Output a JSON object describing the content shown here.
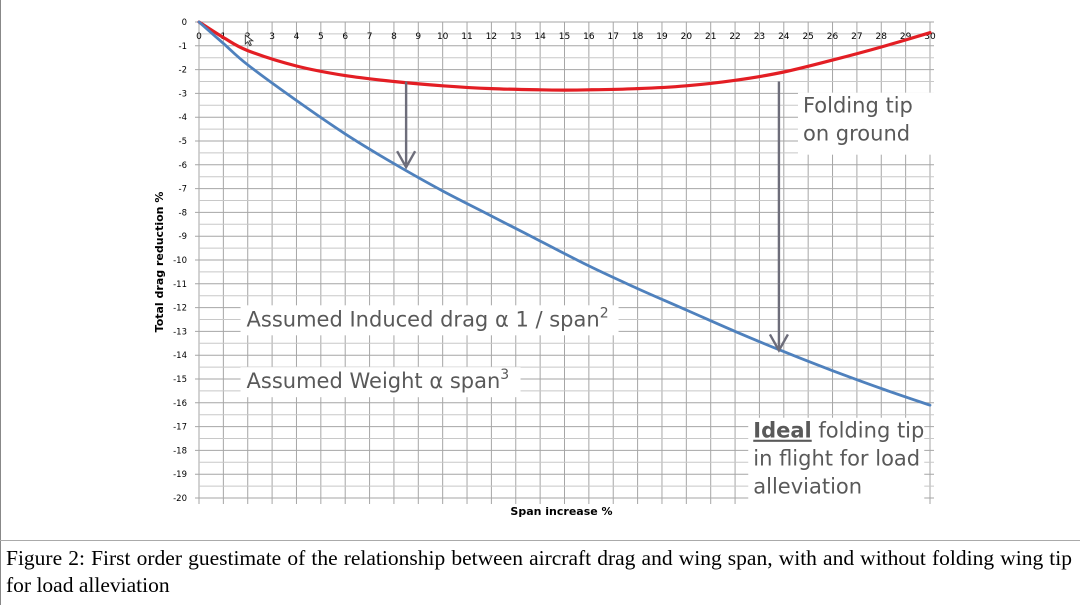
{
  "chart_data": {
    "type": "line",
    "title": "",
    "xlabel": "Span increase %",
    "ylabel": "Total drag reduction %",
    "xlim": [
      0,
      30
    ],
    "ylim": [
      -20,
      0
    ],
    "x_ticks": [
      "0",
      "1",
      "2",
      "3",
      "4",
      "5",
      "6",
      "7",
      "8",
      "9",
      "10",
      "11",
      "12",
      "13",
      "14",
      "15",
      "16",
      "17",
      "18",
      "19",
      "20",
      "21",
      "22",
      "23",
      "24",
      "25",
      "26",
      "27",
      "28",
      "29",
      "30"
    ],
    "y_ticks": [
      "0",
      "-1",
      "-2",
      "-3",
      "-4",
      "-5",
      "-6",
      "-7",
      "-8",
      "-9",
      "-10",
      "-11",
      "-12",
      "-13",
      "-14",
      "-15",
      "-16",
      "-17",
      "-18",
      "-19",
      "-20"
    ],
    "grid": true,
    "series": [
      {
        "name": "Folding tip on ground",
        "color": "#e31e24",
        "x": [
          0,
          1,
          2,
          4,
          6,
          8,
          10,
          12,
          14,
          15,
          16,
          18,
          20,
          22,
          24,
          26,
          28,
          30
        ],
        "values": [
          0,
          -0.65,
          -1.2,
          -1.85,
          -2.25,
          -2.5,
          -2.68,
          -2.8,
          -2.85,
          -2.86,
          -2.85,
          -2.8,
          -2.68,
          -2.45,
          -2.1,
          -1.6,
          -1.05,
          -0.45
        ]
      },
      {
        "name": "Ideal folding tip in flight for load alleviation",
        "color": "#4f81bd",
        "x": [
          0,
          1,
          2,
          4,
          6,
          8,
          10,
          12,
          14,
          16,
          18,
          20,
          22,
          24,
          26,
          28,
          30
        ],
        "values": [
          0,
          -0.9,
          -1.8,
          -3.3,
          -4.7,
          -5.95,
          -7.1,
          -8.15,
          -9.2,
          -10.25,
          -11.2,
          -12.1,
          -13.0,
          -13.85,
          -14.65,
          -15.4,
          -16.1
        ]
      }
    ],
    "annotations": [
      {
        "text_lines": [
          "Folding tip",
          "on ground"
        ],
        "x": 24.5,
        "y": -3.6
      },
      {
        "text": "Assumed Induced drag α 1 / span",
        "superscript": "2",
        "x": 1.5,
        "y": -12.45
      },
      {
        "text": "Assumed Weight α span",
        "superscript": "3",
        "x": 1.5,
        "y": -15.05
      },
      {
        "underlined": "Ideal",
        "text_lines": [
          " folding tip",
          "in flight for load",
          "alleviation"
        ],
        "x": 22.5,
        "y": -17.3
      }
    ],
    "arrows": [
      {
        "x": 8.5,
        "from_y": -2.5,
        "to_y": -6.1
      },
      {
        "x": 23.8,
        "from_y": -2.5,
        "to_y": -13.8
      }
    ]
  },
  "caption": "Figure 2: First order guestimate of the relationship between aircraft drag and wing span, with and without folding wing tip for load alleviation"
}
